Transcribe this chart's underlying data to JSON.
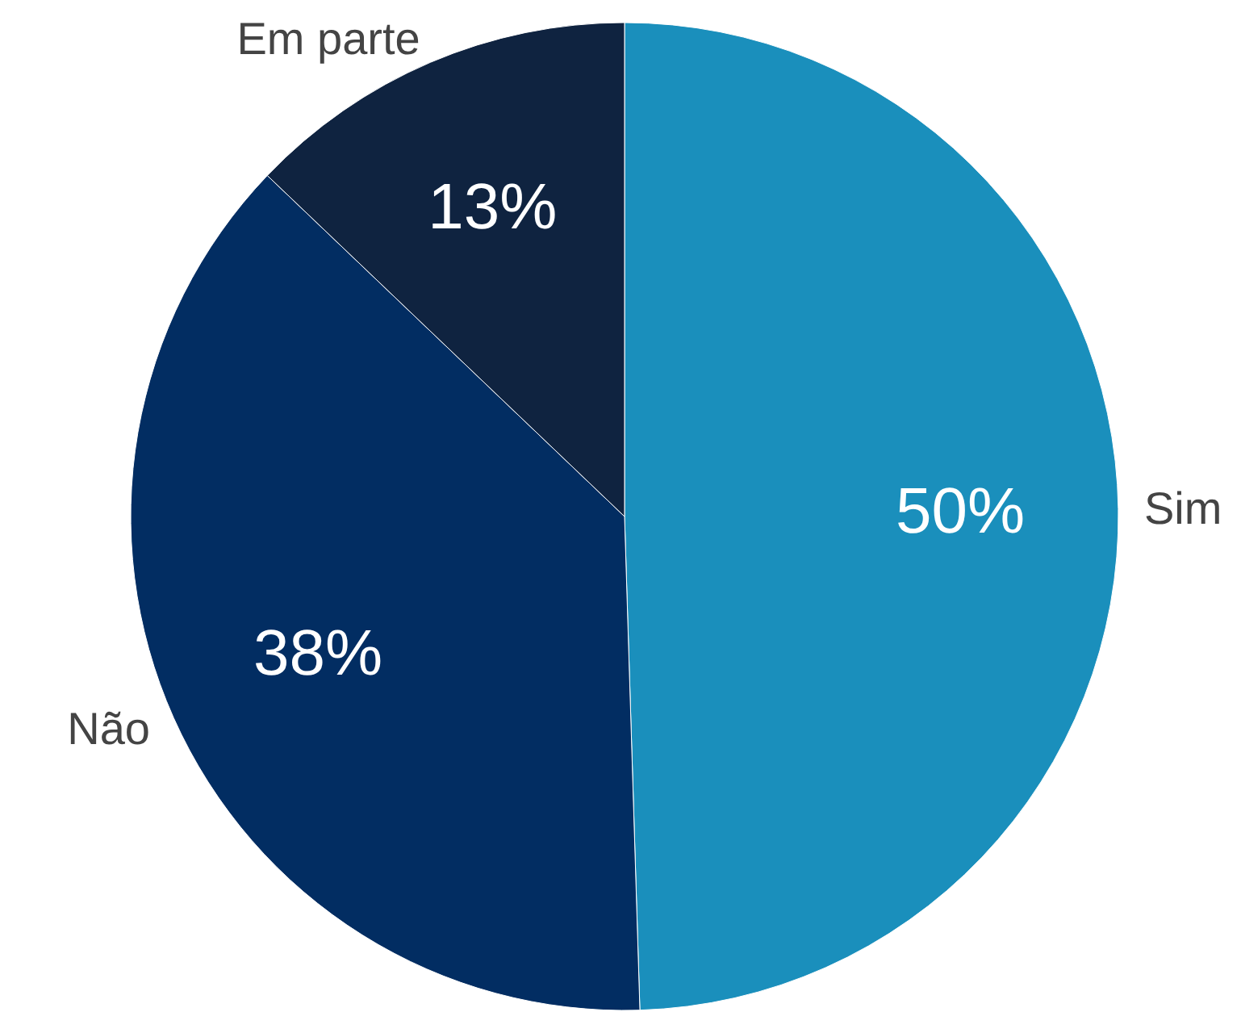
{
  "chart_data": {
    "type": "pie",
    "categories": [
      "Sim",
      "Não",
      "Em parte"
    ],
    "values": [
      50,
      38,
      13
    ],
    "colors": [
      "#1a8fbc",
      "#022d62",
      "#0f2340"
    ],
    "value_labels": [
      "50%",
      "38%",
      "13%"
    ]
  }
}
